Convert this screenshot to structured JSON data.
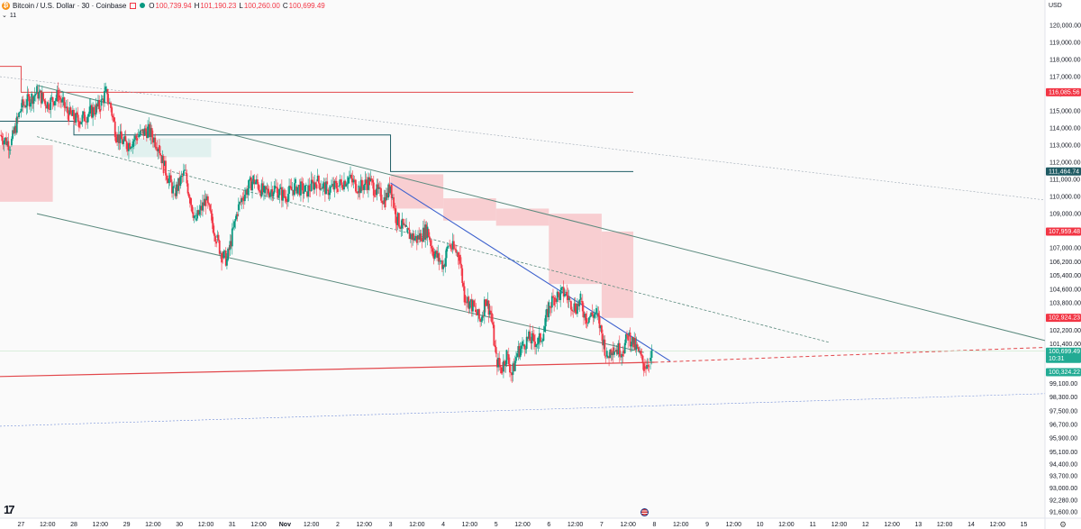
{
  "header": {
    "logo_glyph": "₿",
    "symbol": "Bitcoin / U.S. Dollar · 30 · Coinbase",
    "ohlc": [
      {
        "key": "O",
        "value": "100,739.94"
      },
      {
        "key": "H",
        "value": "101,190.23"
      },
      {
        "key": "L",
        "value": "100,260.00"
      },
      {
        "key": "C",
        "value": "100,699.49"
      }
    ],
    "indicator_count": "11"
  },
  "axis": {
    "currency": "USD"
  },
  "icons": {
    "logo": "tradingview-logo-icon",
    "flag": "us-flag-icon",
    "settings": "gear-icon"
  },
  "colors": {
    "up": "#089981",
    "down": "#f23645",
    "red_line": "#e2474b",
    "teal_line": "#1f5e66",
    "channel": "#5b8a7e",
    "blue_trend": "#3a5fcd",
    "zone": "#f7c9cc",
    "label_red": "#f23645",
    "label_teal": "#1e5a63",
    "label_green": "#22ab94"
  },
  "chart_data": {
    "type": "candlestick",
    "timeframe": "30",
    "exchange": "Coinbase",
    "y_range": [
      91000,
      121000
    ],
    "y_ticks": [
      "120,000.00",
      "119,000.00",
      "118,000.00",
      "117,000.00",
      "116,000.00",
      "115,000.00",
      "114,000.00",
      "113,000.00",
      "112,000.00",
      "111,000.00",
      "110,000.00",
      "109,000.00",
      "108,000.00",
      "107,000.00",
      "106,200.00",
      "105,400.00",
      "104,600.00",
      "103,800.00",
      "102,200.00",
      "101,400.00",
      "99,100.00",
      "98,300.00",
      "97,500.00",
      "96,700.00",
      "95,900.00",
      "95,100.00",
      "94,400.00",
      "93,700.00",
      "93,000.00",
      "92,280.00",
      "91,600.00"
    ],
    "x_ticks": [
      {
        "label": "27",
        "day": 27.0
      },
      {
        "label": "12:00",
        "day": 27.5
      },
      {
        "label": "28",
        "day": 28.0
      },
      {
        "label": "12:00",
        "day": 28.5
      },
      {
        "label": "29",
        "day": 29.0
      },
      {
        "label": "12:00",
        "day": 29.5
      },
      {
        "label": "30",
        "day": 30.0
      },
      {
        "label": "12:00",
        "day": 30.5
      },
      {
        "label": "31",
        "day": 31.0
      },
      {
        "label": "12:00",
        "day": 31.5
      },
      {
        "label": "Nov",
        "day": 32.0
      },
      {
        "label": "12:00",
        "day": 32.5
      },
      {
        "label": "2",
        "day": 33.0
      },
      {
        "label": "12:00",
        "day": 33.5
      },
      {
        "label": "3",
        "day": 34.0
      },
      {
        "label": "12:00",
        "day": 34.5
      },
      {
        "label": "4",
        "day": 35.0
      },
      {
        "label": "12:00",
        "day": 35.5
      },
      {
        "label": "5",
        "day": 36.0
      },
      {
        "label": "12:00",
        "day": 36.5
      },
      {
        "label": "6",
        "day": 37.0
      },
      {
        "label": "12:00",
        "day": 37.5
      },
      {
        "label": "7",
        "day": 38.0
      },
      {
        "label": "12:00",
        "day": 38.5
      },
      {
        "label": "8",
        "day": 39.0
      },
      {
        "label": "12:00",
        "day": 39.5
      },
      {
        "label": "9",
        "day": 40.0
      },
      {
        "label": "12:00",
        "day": 40.5
      },
      {
        "label": "10",
        "day": 41.0
      },
      {
        "label": "12:00",
        "day": 41.5
      },
      {
        "label": "11",
        "day": 42.0
      },
      {
        "label": "12:00",
        "day": 42.5
      },
      {
        "label": "12",
        "day": 43.0
      },
      {
        "label": "12:00",
        "day": 43.5
      },
      {
        "label": "13",
        "day": 44.0
      },
      {
        "label": "12:00",
        "day": 44.5
      },
      {
        "label": "14",
        "day": 45.0
      },
      {
        "label": "12:00",
        "day": 45.5
      },
      {
        "label": "15",
        "day": 46.0
      }
    ],
    "x_range": [
      26.6,
      46.4
    ],
    "price_path": [
      [
        26.6,
        113.6
      ],
      [
        26.8,
        113.0
      ],
      [
        27.0,
        115.2
      ],
      [
        27.2,
        115.8
      ],
      [
        27.3,
        116.1
      ],
      [
        27.5,
        115.4
      ],
      [
        27.7,
        115.9
      ],
      [
        27.9,
        114.8
      ],
      [
        28.1,
        114.4
      ],
      [
        28.3,
        114.9
      ],
      [
        28.5,
        115.3
      ],
      [
        28.6,
        116.1
      ],
      [
        28.7,
        115.2
      ],
      [
        28.8,
        113.6
      ],
      [
        29.0,
        113.0
      ],
      [
        29.2,
        113.5
      ],
      [
        29.4,
        113.9
      ],
      [
        29.6,
        113.0
      ],
      [
        29.7,
        111.8
      ],
      [
        29.9,
        110.2
      ],
      [
        30.1,
        111.4
      ],
      [
        30.2,
        109.9
      ],
      [
        30.3,
        108.6
      ],
      [
        30.5,
        109.8
      ],
      [
        30.7,
        107.6
      ],
      [
        30.8,
        106.6
      ],
      [
        30.9,
        106.3
      ],
      [
        31.1,
        109.2
      ],
      [
        31.2,
        110.0
      ],
      [
        31.4,
        111.0
      ],
      [
        31.6,
        110.2
      ],
      [
        31.8,
        110.5
      ],
      [
        32.0,
        110.0
      ],
      [
        32.2,
        110.6
      ],
      [
        32.4,
        110.3
      ],
      [
        32.6,
        110.9
      ],
      [
        32.8,
        110.4
      ],
      [
        33.0,
        110.6
      ],
      [
        33.2,
        111.1
      ],
      [
        33.4,
        110.5
      ],
      [
        33.6,
        110.9
      ],
      [
        33.7,
        110.4
      ],
      [
        33.9,
        109.8
      ],
      [
        34.0,
        110.7
      ],
      [
        34.1,
        108.8
      ],
      [
        34.3,
        107.9
      ],
      [
        34.5,
        107.5
      ],
      [
        34.7,
        108.1
      ],
      [
        34.8,
        106.8
      ],
      [
        35.0,
        106.0
      ],
      [
        35.1,
        107.2
      ],
      [
        35.3,
        106.6
      ],
      [
        35.4,
        104.2
      ],
      [
        35.6,
        103.4
      ],
      [
        35.7,
        102.7
      ],
      [
        35.8,
        104.0
      ],
      [
        35.9,
        103.2
      ],
      [
        36.0,
        100.5
      ],
      [
        36.1,
        99.9
      ],
      [
        36.2,
        100.8
      ],
      [
        36.3,
        99.6
      ],
      [
        36.4,
        100.9
      ],
      [
        36.5,
        101.3
      ],
      [
        36.6,
        101.7
      ],
      [
        36.8,
        101.5
      ],
      [
        36.9,
        102.1
      ],
      [
        37.0,
        103.6
      ],
      [
        37.1,
        104.1
      ],
      [
        37.3,
        104.4
      ],
      [
        37.4,
        103.9
      ],
      [
        37.5,
        103.5
      ],
      [
        37.6,
        103.9
      ],
      [
        37.7,
        102.9
      ],
      [
        37.9,
        103.2
      ],
      [
        38.0,
        102.0
      ],
      [
        38.1,
        100.6
      ],
      [
        38.2,
        101.2
      ],
      [
        38.4,
        101.0
      ],
      [
        38.5,
        101.9
      ],
      [
        38.6,
        101.4
      ],
      [
        38.7,
        100.9
      ],
      [
        38.8,
        100.1
      ],
      [
        38.9,
        100.4
      ],
      [
        38.95,
        100.7
      ]
    ],
    "lines": [
      {
        "name": "red-step-resistance",
        "value": "116,085.56",
        "level": 116085.56
      },
      {
        "name": "teal-step-level",
        "value": "111,464.74",
        "level": 111464.74
      },
      {
        "name": "zone-top",
        "value": "107,959.48",
        "level": 107959.48
      },
      {
        "name": "zone-bottom",
        "value": "102,924.23",
        "level": 102924.23
      }
    ],
    "last_price": {
      "value": "100,699.49",
      "countdown": "10:31"
    },
    "support_level": {
      "value": "100,324.22"
    }
  }
}
